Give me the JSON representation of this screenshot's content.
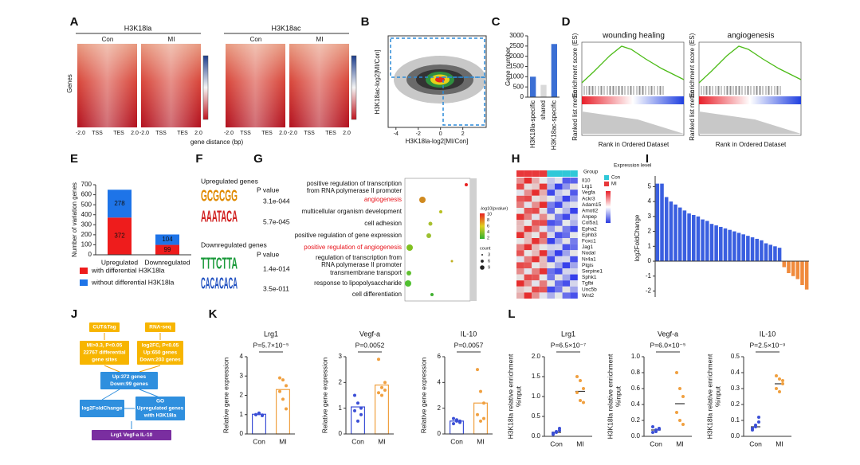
{
  "panel_labels": [
    "A",
    "B",
    "C",
    "D",
    "E",
    "F",
    "G",
    "H",
    "I",
    "J",
    "K",
    "L"
  ],
  "panel_a": {
    "titles": [
      "H3K18la",
      "H3K18ac"
    ],
    "groups": [
      "Con",
      "MI",
      "Con",
      "MI"
    ],
    "y_label": "Genes",
    "x_ticks": [
      "-2.0",
      "TSS",
      "TES",
      "2.0"
    ],
    "x_label": "gene distance (bp)"
  },
  "panel_b": {
    "x_label": "H3K18la-log2[MI/Con]",
    "y_label": "H3K18ac-log2[MI/Con]",
    "xlim": [
      -4.7,
      4.1
    ],
    "xticks": [
      -4,
      -2,
      0,
      2
    ]
  },
  "panel_d": {
    "titles": [
      "wounding healing",
      "angiogenesis"
    ],
    "y_label_top": "Enrichment score (ES)",
    "y_label_bottom": "Ranked list metric",
    "x_label": "Rank in Ordered Dataset"
  },
  "panel_f": {
    "up_title": "Upregulated genes",
    "down_title": "Downregulated genes",
    "p_header": "P value",
    "motifs": [
      {
        "logo": "GCGCGG",
        "p": "3.1e-044"
      },
      {
        "logo": "AAATACA",
        "p": "5.7e-045"
      },
      {
        "logo": "TTTCTTA",
        "p": "1.4e-014"
      },
      {
        "logo": "CACACACA",
        "p": "3.5e-011"
      }
    ]
  },
  "panel_g": {
    "terms": [
      [
        "positive regulation of transcription",
        "from RNA polymerase II promoter"
      ],
      [
        "angiogenesis"
      ],
      [
        "multicellular organism development"
      ],
      [
        "cell adhesion"
      ],
      [
        "positive regulation of gene expression"
      ],
      [
        "positive regulation of angiogenesis"
      ],
      [
        "regulation of transcription from",
        "RNA polymerase II promoter"
      ],
      [
        "transmembrane transport"
      ],
      [
        "response to lipopolysaccharide"
      ],
      [
        "cell differentiation"
      ]
    ],
    "highlight_color": "#e8141c",
    "legend_title": "-log10(pvalue)",
    "legend_values": [
      10,
      8,
      6,
      4,
      2
    ],
    "count_title": "count",
    "count_values": [
      3,
      6,
      9
    ]
  },
  "panel_h": {
    "genes": [
      "Il10",
      "Lrg1",
      "Vegfa",
      "Ackr3",
      "Adam15",
      "Amotl2",
      "Anpep",
      "Col5a1",
      "Epha2",
      "Ephb3",
      "Foxc1",
      "Jag1",
      "Nodal",
      "Nr4a1",
      "Ptgis",
      "Serpine1",
      "Sphk1",
      "Tgfbi",
      "Unc5b",
      "Wnt2"
    ],
    "group_title": "Group",
    "groups": [
      "Con",
      "MI"
    ],
    "legend_title": "Expression level"
  },
  "panel_j": {
    "nodes": [
      {
        "lines": [
          "CUT&Tag"
        ]
      },
      {
        "lines": [
          "RNA-seq"
        ]
      },
      {
        "lines": [
          "MI>0.3, P<0.05",
          "22767 differential",
          "gene sites"
        ]
      },
      {
        "lines": [
          "log2FC, P<0.05",
          "Up:650 genes",
          "Down:203 genes"
        ]
      },
      {
        "lines": [
          "Up:372 genes",
          "Down:99 genes"
        ]
      },
      {
        "lines": [
          "log2FoldChange"
        ]
      },
      {
        "lines": [
          "GO",
          "Upregulated genes",
          "with H3K18la"
        ]
      },
      {
        "lines": [
          "Lrg1  Vegf-a  IL-10"
        ]
      }
    ]
  },
  "chart_data": [
    {
      "type": "bar",
      "y_label": "Gene number",
      "categories": [
        "H3K18la-specific",
        "shared",
        "H3K18ac-specific"
      ],
      "values": [
        1000,
        600,
        2600
      ],
      "colors": [
        "#3b6fd4",
        "#d9d9d9",
        "#3b6fd4"
      ],
      "ylim": [
        0,
        3000
      ],
      "yticks": [
        0,
        500,
        1000,
        1500,
        2000,
        2500,
        3000
      ]
    },
    {
      "type": "stacked_bar",
      "y_label": "Number of variation genes",
      "categories": [
        "Upregulated",
        "Downregulated"
      ],
      "series": [
        {
          "name": "with differential H3K18la",
          "color": "#ee1c1c",
          "values": [
            372,
            99
          ]
        },
        {
          "name": "without differential H3K18la",
          "color": "#1e74e8",
          "values": [
            278,
            104
          ]
        }
      ],
      "ylim": [
        0,
        700
      ],
      "yticks": [
        0,
        100,
        200,
        300,
        400,
        500,
        600,
        700
      ]
    },
    {
      "type": "bar",
      "y_label": "log2FoldChange",
      "categories": [
        null,
        null,
        null,
        null,
        null,
        null,
        null,
        null,
        null,
        null,
        null,
        null,
        null,
        null,
        null,
        null,
        null,
        null,
        null,
        null,
        null,
        null,
        null,
        null,
        null,
        null,
        null,
        null,
        null,
        null,
        null,
        null,
        null,
        null
      ],
      "values": [
        5.2,
        5.2,
        4.3,
        4.0,
        3.8,
        3.6,
        3.4,
        3.2,
        3.1,
        3.0,
        2.8,
        2.7,
        2.5,
        2.4,
        2.3,
        2.2,
        2.1,
        2.0,
        1.9,
        1.8,
        1.7,
        1.6,
        1.5,
        1.4,
        1.2,
        1.1,
        1.0,
        0.9,
        -0.4,
        -0.8,
        -1.0,
        -1.2,
        -1.6,
        -1.9
      ],
      "color": "#3a5fe0",
      "negative_color": "#f08a3c",
      "ylim": [
        -2.4,
        5.5
      ],
      "yticks": [
        -2,
        -1,
        0,
        1,
        2,
        3,
        4,
        5
      ]
    },
    {
      "type": "bar_dot",
      "title": "Lrg1",
      "annotation": "P=5.7×10⁻⁵",
      "y_label": "Relative gene expression",
      "categories": [
        "Con",
        "MI"
      ],
      "colors": [
        "#3b4fd6",
        "#f0a040"
      ],
      "values": [
        1.02,
        2.3
      ],
      "points": [
        [
          1.0,
          1.05,
          0.95,
          1.0,
          1.08,
          0.98
        ],
        [
          2.9,
          2.8,
          2.5,
          2.2,
          1.8,
          1.3
        ]
      ],
      "ylim": [
        0,
        4
      ],
      "yticks": [
        0,
        1,
        2,
        3,
        4
      ]
    },
    {
      "type": "bar_dot",
      "title": "Vegf-a",
      "annotation": "P=0.0052",
      "y_label": "Relative gene expression",
      "categories": [
        "Con",
        "MI"
      ],
      "colors": [
        "#3b4fd6",
        "#f0a040"
      ],
      "values": [
        1.05,
        1.9
      ],
      "points": [
        [
          1.5,
          1.2,
          1.0,
          0.9,
          0.5,
          0.75
        ],
        [
          2.9,
          1.8,
          1.7,
          1.6,
          1.5,
          2.0
        ]
      ],
      "ylim": [
        0,
        3
      ],
      "yticks": [
        0,
        1,
        2,
        3
      ]
    },
    {
      "type": "bar_dot",
      "title": "IL-10",
      "annotation": "P=0.0057",
      "y_label": "Relative gene expression",
      "categories": [
        "Con",
        "MI"
      ],
      "colors": [
        "#3b4fd6",
        "#f0a040"
      ],
      "values": [
        1.0,
        2.4
      ],
      "points": [
        [
          1.2,
          1.0,
          0.9,
          0.8,
          1.1,
          1.0
        ],
        [
          5.0,
          3.3,
          2.4,
          1.5,
          1.0,
          1.2
        ]
      ],
      "ylim": [
        0,
        6
      ],
      "yticks": [
        0,
        2,
        4,
        6
      ]
    },
    {
      "type": "dot_plot",
      "title": "Lrg1",
      "annotation": "P=6.5×10⁻⁷",
      "y_label": [
        "H3K18la relative enrichment",
        "%input"
      ],
      "categories": [
        "Con",
        "MI"
      ],
      "colors": [
        "#3b4fd6",
        "#f0a040"
      ],
      "values": [
        0.1,
        1.13
      ],
      "points": [
        [
          0.05,
          0.1,
          0.15,
          0.08,
          0.12,
          0.2
        ],
        [
          1.5,
          1.4,
          1.2,
          1.1,
          0.9,
          0.85
        ]
      ],
      "ylim": [
        0,
        2
      ],
      "yticks": [
        {
          "value": 0,
          "label": "0.0"
        },
        0.5,
        {
          "value": 1,
          "label": "1.0"
        },
        1.5,
        {
          "value": 2,
          "label": "2.0"
        }
      ]
    },
    {
      "type": "dot_plot",
      "title": "Vegf-a",
      "annotation": "P=6.0×10⁻⁵",
      "y_label": [
        "H3K18la relative enrichment",
        "%input"
      ],
      "categories": [
        "Con",
        "MI"
      ],
      "colors": [
        "#3b4fd6",
        "#f0a040"
      ],
      "values": [
        0.08,
        0.41
      ],
      "points": [
        [
          0.05,
          0.08,
          0.1,
          0.12,
          0.06,
          0.09
        ],
        [
          0.8,
          0.6,
          0.5,
          0.3,
          0.2,
          0.15
        ]
      ],
      "ylim": [
        0,
        1
      ],
      "yticks": [
        {
          "value": 0,
          "label": "0.0"
        },
        0.2,
        0.4,
        0.6,
        0.8,
        {
          "value": 1,
          "label": "1.0"
        }
      ]
    },
    {
      "type": "dot_plot",
      "title": "IL-10",
      "annotation": "P=2.5×10⁻⁹",
      "y_label": [
        "H3K18la relative enrichment",
        "%input"
      ],
      "categories": [
        "Con",
        "MI"
      ],
      "colors": [
        "#3b4fd6",
        "#f0a040"
      ],
      "values": [
        0.06,
        0.33
      ],
      "points": [
        [
          0.04,
          0.06,
          0.09,
          0.05,
          0.07,
          0.12
        ],
        [
          0.38,
          0.36,
          0.33,
          0.3,
          0.28,
          0.35
        ]
      ],
      "ylim": [
        0,
        0.5
      ],
      "yticks": [
        {
          "value": 0,
          "label": "0.0"
        },
        0.1,
        0.2,
        0.3,
        0.4,
        0.5
      ]
    }
  ]
}
